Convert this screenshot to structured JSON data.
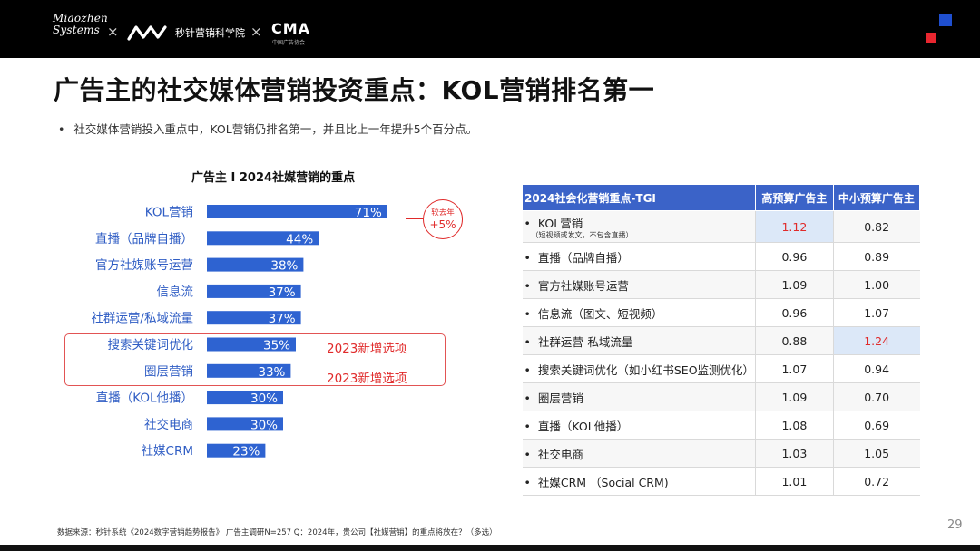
{
  "header": {
    "logo_miaozhen_line1": "Miaozhen",
    "logo_miaozhen_line2": "Systems",
    "logo_school": "秒针营销科学院",
    "logo_cma": "CMA",
    "logo_cma_sub": "中国广告协会",
    "cross": "×",
    "accent_blue": "#1f4fcf",
    "accent_red": "#e8262f"
  },
  "title": "广告主的社交媒体营销投资重点：KOL营销排名第一",
  "bullet": "社交媒体营销投入重点中，KOL营销仍排名第一，并且比上一年提升5个百分点。",
  "chart_data": {
    "type": "bar",
    "orientation": "horizontal",
    "title": "广告主 I 2024社媒营销的重点",
    "categories": [
      "KOL营销",
      "直播（品牌自播）",
      "官方社媒账号运营",
      "信息流",
      "社群运营/私域流量",
      "搜索关键词优化",
      "圈层营销",
      "直播（KOL他播）",
      "社交电商",
      "社媒CRM"
    ],
    "values": [
      71,
      44,
      38,
      37,
      37,
      35,
      33,
      30,
      30,
      23
    ],
    "value_labels": [
      "71%",
      "44%",
      "38%",
      "37%",
      "37%",
      "35%",
      "33%",
      "30%",
      "30%",
      "23%"
    ],
    "unit": "%",
    "bar_color": "#2e63d1",
    "xlim": [
      0,
      100
    ],
    "annotations": {
      "yoy_badge_line1": "较去年",
      "yoy_badge_line2": "+5%",
      "new_option_label": "2023新增选项",
      "new_option_categories": [
        "搜索关键词优化",
        "圈层营销"
      ],
      "highlight_color": "#e02a2a"
    }
  },
  "table": {
    "headers": [
      "2024社会化营销重点-TGI",
      "高预算广告主",
      "中小预算广告主"
    ],
    "rows": [
      {
        "label": "KOL营销",
        "sub": "（短视频或发文，不包含直播）",
        "high": "1.12",
        "small": "0.82",
        "hl": "high"
      },
      {
        "label": "直播（品牌自播）",
        "high": "0.96",
        "small": "0.89"
      },
      {
        "label": "官方社媒账号运营",
        "high": "1.09",
        "small": "1.00"
      },
      {
        "label": "信息流（图文、短视频）",
        "high": "0.96",
        "small": "1.07"
      },
      {
        "label": "社群运营-私域流量",
        "high": "0.88",
        "small": "1.24",
        "hl": "small"
      },
      {
        "label": "搜索关键词优化（如小红书SEO监测优化）",
        "high": "1.07",
        "small": "0.94"
      },
      {
        "label": "圈层营销",
        "high": "1.09",
        "small": "0.70"
      },
      {
        "label": "直播（KOL他播）",
        "high": "1.08",
        "small": "0.69"
      },
      {
        "label": "社交电商",
        "high": "1.03",
        "small": "1.05"
      },
      {
        "label": "社媒CRM （Social CRM)",
        "high": "1.01",
        "small": "0.72"
      }
    ],
    "header_color": "#3b63c8",
    "highlight_color": "#dce8f8"
  },
  "footnote": "数据来源：秒针系统《2024数字营销趋势报告》 广告主调研N=257    Q：2024年，贵公司【社媒营销】的重点将放在？（多选）",
  "page_number": "29"
}
